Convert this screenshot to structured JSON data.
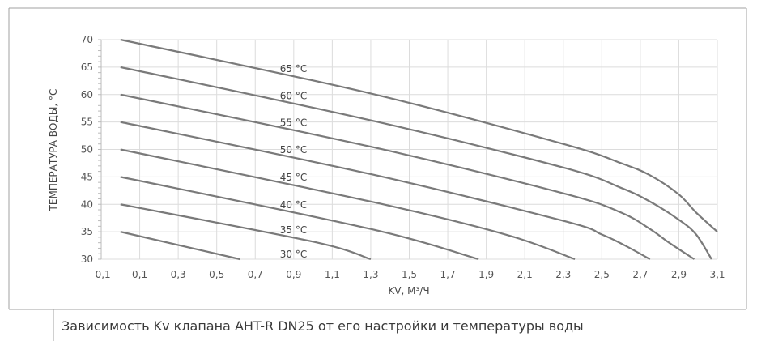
{
  "caption": "Зависимость Kv клапана AHT-R DN25 от его настройки и температуры воды",
  "chart_data": {
    "type": "line",
    "xlabel": "KV, М³/Ч",
    "ylabel": "ТЕМПЕРАТУРА ВОДЫ, °С",
    "xlim": [
      -0.1,
      3.1
    ],
    "ylim": [
      30,
      70
    ],
    "xticks": [
      "-0,1",
      "0,1",
      "0,3",
      "0,5",
      "0,7",
      "0,9",
      "1,1",
      "1,3",
      "1,5",
      "1,7",
      "1,9",
      "2,1",
      "2,3",
      "2,5",
      "2,7",
      "2,9",
      "3,1"
    ],
    "yticks": [
      "30",
      "35",
      "40",
      "45",
      "50",
      "55",
      "60",
      "65",
      "70"
    ],
    "grid": true,
    "line_color": "#7a7a7a",
    "series": [
      {
        "name": "30 °С",
        "x": [
          0,
          0.62
        ],
        "y": [
          35,
          30
        ]
      },
      {
        "name": "35 °С",
        "x": [
          0,
          1.0,
          1.3
        ],
        "y": [
          40,
          33.2,
          30
        ]
      },
      {
        "name": "40 °С",
        "x": [
          0,
          1.3,
          1.86
        ],
        "y": [
          45,
          35.5,
          30
        ]
      },
      {
        "name": "45 °С",
        "x": [
          0,
          1.3,
          2.0,
          2.36
        ],
        "y": [
          50,
          40.5,
          34.5,
          30
        ]
      },
      {
        "name": "50 °С",
        "x": [
          0,
          1.3,
          2.3,
          2.5,
          2.62,
          2.75
        ],
        "y": [
          55,
          45.5,
          37,
          34.5,
          32.5,
          30
        ]
      },
      {
        "name": "55 °С",
        "x": [
          0,
          1.3,
          2.3,
          2.6,
          2.75,
          2.85,
          2.98
        ],
        "y": [
          60,
          50.5,
          42,
          38.5,
          35.5,
          33,
          30
        ]
      },
      {
        "name": "60 °С",
        "x": [
          0,
          1.3,
          2.3,
          2.6,
          2.75,
          2.9,
          2.99,
          3.07
        ],
        "y": [
          65,
          55.3,
          46.7,
          43,
          40.5,
          37.2,
          34.5,
          30
        ]
      },
      {
        "name": "65 °С",
        "x": [
          0,
          1.3,
          2.3,
          2.6,
          2.75,
          2.9,
          2.99,
          3.1
        ],
        "y": [
          70,
          60.2,
          51,
          47.5,
          45.3,
          41.8,
          38.5,
          35
        ]
      }
    ]
  }
}
